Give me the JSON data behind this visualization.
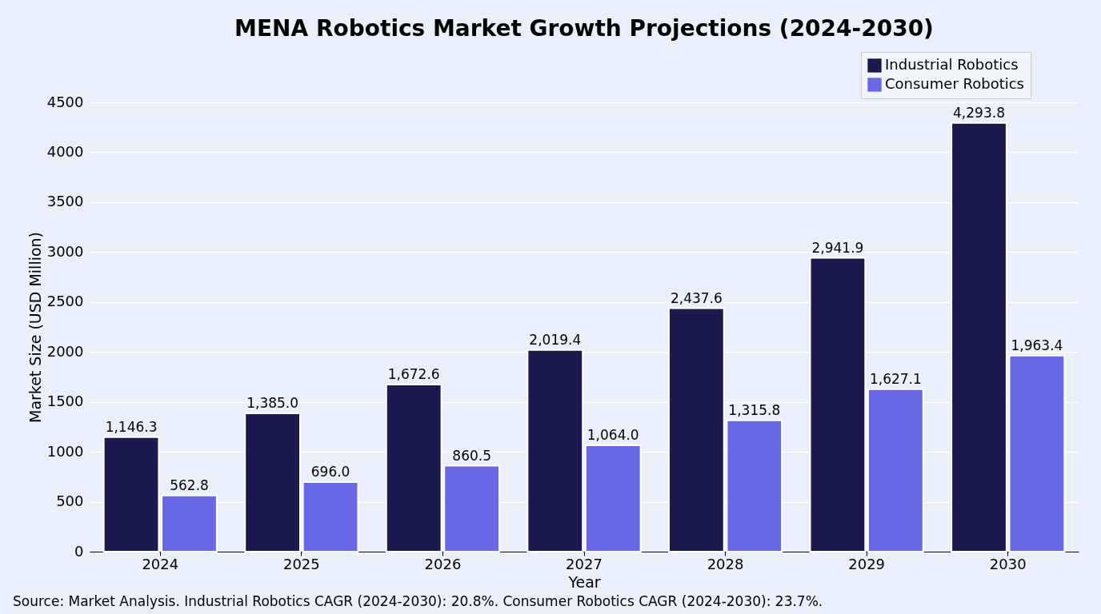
{
  "chart_data": {
    "type": "bar",
    "title": "MENA Robotics Market Growth Projections (2024-2030)",
    "xlabel": "Year",
    "ylabel": "Market Size (USD Million)",
    "categories": [
      "2024",
      "2025",
      "2026",
      "2027",
      "2028",
      "2029",
      "2030"
    ],
    "series": [
      {
        "name": "Industrial Robotics",
        "color": "#1a1a4e",
        "values": [
          1146.3,
          1385.0,
          1672.6,
          2019.4,
          2437.6,
          2941.9,
          4293.8
        ],
        "value_labels": [
          "1,146.3",
          "1,385.0",
          "1,672.6",
          "2,019.4",
          "2,437.6",
          "2,941.9",
          "4,293.8"
        ]
      },
      {
        "name": "Consumer Robotics",
        "color": "#6767e8",
        "values": [
          562.8,
          696.0,
          860.5,
          1064.0,
          1315.8,
          1627.1,
          1963.4
        ],
        "value_labels": [
          "562.8",
          "696.0",
          "860.5",
          "1,064.0",
          "1,315.8",
          "1,627.1",
          "1,963.4"
        ]
      }
    ],
    "ylim": [
      0,
      4500
    ],
    "yticks": [
      0,
      500,
      1000,
      1500,
      2000,
      2500,
      3000,
      3500,
      4000,
      4500
    ],
    "grid": "y",
    "legend": "top right",
    "annotations": [
      "Source: Market Analysis. Industrial Robotics CAGR (2024-2030): 20.8%. Consumer Robotics CAGR (2024-2030): 23.7%."
    ]
  }
}
